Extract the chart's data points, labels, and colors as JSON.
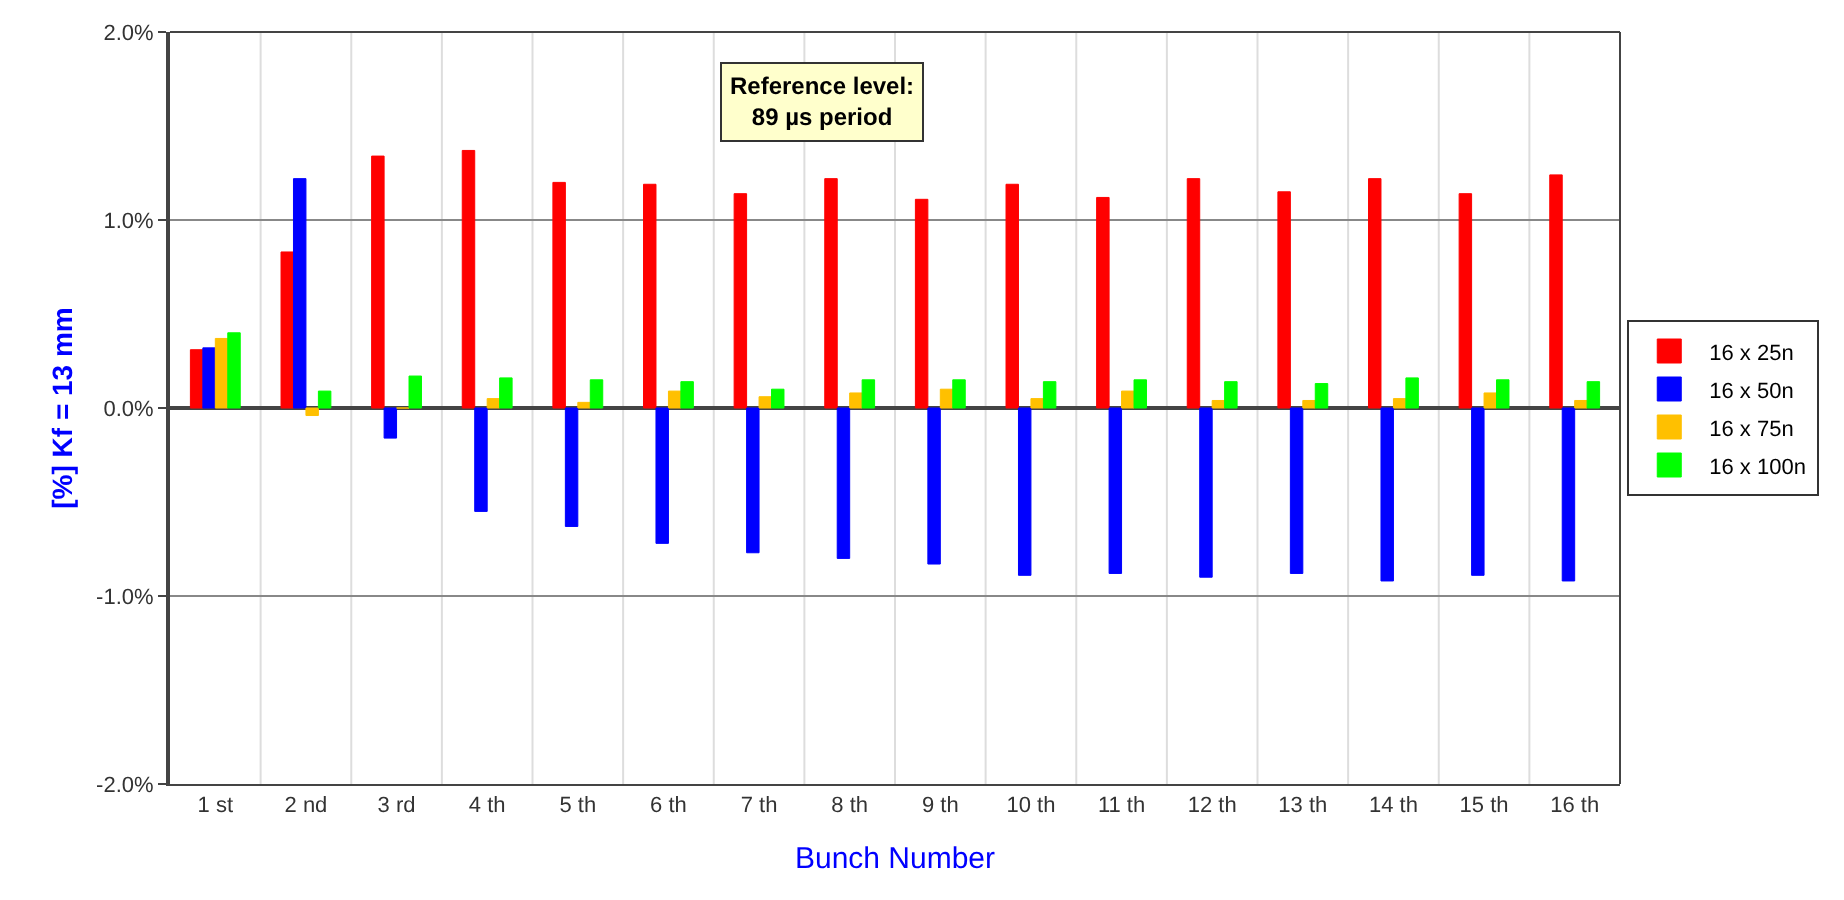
{
  "chart_data": {
    "type": "bar",
    "categories": [
      "1 st",
      "2 nd",
      "3 rd",
      "4 th",
      "5 th",
      "6 th",
      "7 th",
      "8 th",
      "9 th",
      "10 th",
      "11 th",
      "12 th",
      "13 th",
      "14 th",
      "15 th",
      "16 th"
    ],
    "series": [
      {
        "name": "16 x 25n",
        "color": "#ff0000",
        "values": [
          0.31,
          0.83,
          1.34,
          1.37,
          1.2,
          1.19,
          1.14,
          1.22,
          1.11,
          1.19,
          1.12,
          1.22,
          1.15,
          1.22,
          1.14,
          1.24
        ]
      },
      {
        "name": "16 x 50n",
        "color": "#0000ff",
        "values": [
          0.32,
          1.22,
          -0.16,
          -0.55,
          -0.63,
          -0.72,
          -0.77,
          -0.8,
          -0.83,
          -0.89,
          -0.88,
          -0.9,
          -0.88,
          -0.92,
          -0.89,
          -0.92
        ]
      },
      {
        "name": "16 x 75n",
        "color": "#ffc000",
        "values": [
          0.37,
          -0.04,
          0.0,
          0.05,
          0.03,
          0.09,
          0.06,
          0.08,
          0.1,
          0.05,
          0.09,
          0.04,
          0.04,
          0.05,
          0.08,
          0.04
        ]
      },
      {
        "name": "16 x 100n",
        "color": "#00ff00",
        "values": [
          0.4,
          0.09,
          0.17,
          0.16,
          0.15,
          0.14,
          0.1,
          0.15,
          0.15,
          0.14,
          0.15,
          0.14,
          0.13,
          0.16,
          0.15,
          0.14
        ]
      }
    ],
    "xlabel": "Bunch Number",
    "ylabel": "[%] Kf = 13 mm",
    "ylim": [
      -2.0,
      2.0
    ],
    "yticks": [
      {
        "value": -2.0,
        "label": "-2.0%"
      },
      {
        "value": -1.0,
        "label": "-1.0%"
      },
      {
        "value": 0.0,
        "label": "0.0%"
      },
      {
        "value": 1.0,
        "label": "1.0%"
      },
      {
        "value": 2.0,
        "label": "2.0%"
      }
    ],
    "annotations": [
      "Reference level:\n89 µs period"
    ],
    "grid": true,
    "legend": "right"
  }
}
